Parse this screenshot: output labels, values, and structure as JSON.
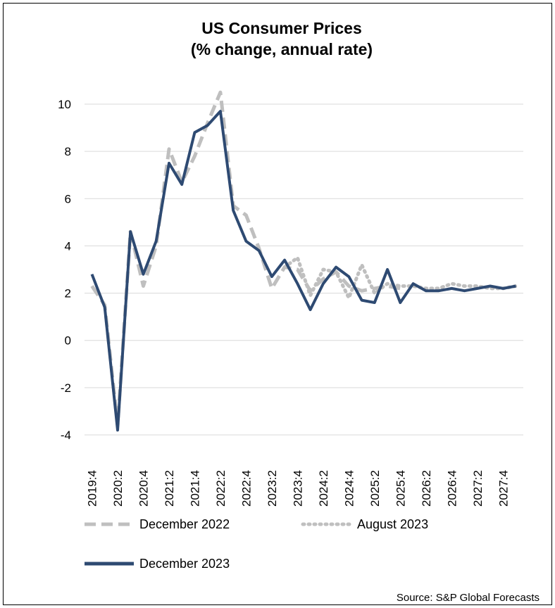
{
  "chart_data": {
    "type": "line",
    "title": "US Consumer Prices",
    "subtitle": "(% change, annual rate)",
    "source": "Source: S&P Global Forecasts",
    "ylim": [
      -4,
      10
    ],
    "y_ticks": [
      -4,
      -2,
      0,
      2,
      4,
      6,
      8,
      10
    ],
    "x": [
      "2019:4",
      "2020:1",
      "2020:2",
      "2020:3",
      "2020:4",
      "2021:1",
      "2021:2",
      "2021:3",
      "2021:4",
      "2022:1",
      "2022:2",
      "2022:3",
      "2022:4",
      "2023:1",
      "2023:2",
      "2023:3",
      "2023:4",
      "2024:1",
      "2024:2",
      "2024:3",
      "2024:4",
      "2025:1",
      "2025:2",
      "2025:3",
      "2025:4",
      "2026:1",
      "2026:2",
      "2026:3",
      "2026:4",
      "2027:1",
      "2027:2",
      "2027:3",
      "2027:4",
      "2028:1"
    ],
    "x_tick_labels": [
      "2019:4",
      "2020:2",
      "2020:4",
      "2021:2",
      "2021:4",
      "2022:2",
      "2022:4",
      "2023:2",
      "2023:4",
      "2024:2",
      "2024:4",
      "2025:2",
      "2025:4",
      "2026:2",
      "2026:4",
      "2027:2",
      "2027:4"
    ],
    "grid": true,
    "legend_position": "bottom",
    "series": [
      {
        "name": "December 2022",
        "style": "dashed",
        "color": "#bfbfbf",
        "values": [
          2.3,
          1.5,
          -3.6,
          4.6,
          2.3,
          4.0,
          8.1,
          6.7,
          7.8,
          9.2,
          10.5,
          5.7,
          5.3,
          3.9,
          2.2,
          3.1,
          3.0,
          2.1,
          2.6,
          2.9,
          2.3,
          2.1,
          2.2,
          2.3,
          2.2,
          null,
          null,
          null,
          null,
          null,
          null,
          null,
          null,
          null
        ]
      },
      {
        "name": "August 2023",
        "style": "dotted",
        "color": "#bfbfbf",
        "values": [
          null,
          null,
          null,
          null,
          null,
          null,
          null,
          null,
          null,
          null,
          null,
          null,
          null,
          null,
          null,
          3.1,
          3.5,
          1.9,
          3.0,
          2.9,
          1.8,
          3.2,
          2.0,
          2.4,
          2.3,
          2.3,
          2.2,
          2.2,
          2.4,
          2.3,
          2.3,
          2.2,
          2.2,
          2.3
        ]
      },
      {
        "name": "December 2023",
        "style": "solid",
        "color": "#2e4a72",
        "values": [
          2.8,
          1.4,
          -3.8,
          4.6,
          2.8,
          4.2,
          7.5,
          6.6,
          8.8,
          9.1,
          9.7,
          5.5,
          4.2,
          3.8,
          2.7,
          3.4,
          2.4,
          1.3,
          2.4,
          3.1,
          2.7,
          1.7,
          1.6,
          3.0,
          1.6,
          2.4,
          2.1,
          2.1,
          2.2,
          2.1,
          2.2,
          2.3,
          2.2,
          2.3
        ]
      }
    ]
  }
}
